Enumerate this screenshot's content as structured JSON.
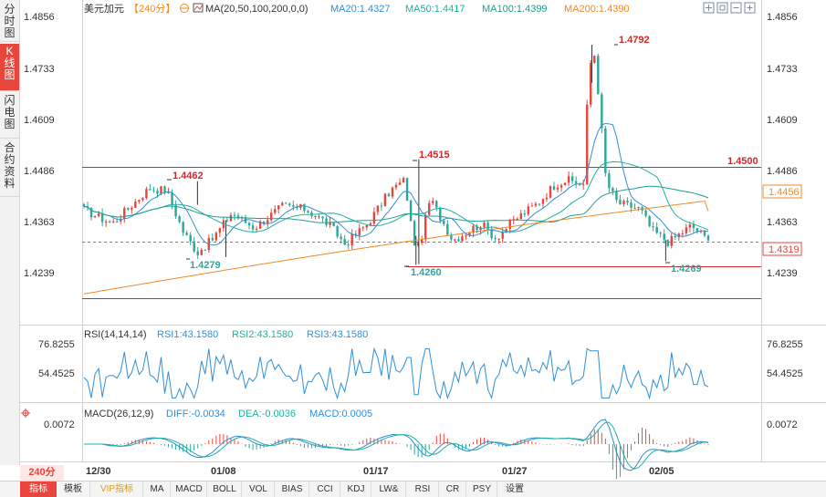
{
  "side_tabs": [
    {
      "label": "分时图",
      "active": false
    },
    {
      "label": "K线图",
      "active": true
    },
    {
      "label": "闪电图",
      "active": false
    },
    {
      "label": "合约资料",
      "active": false
    }
  ],
  "header": {
    "symbol": "美元加元",
    "period": "【240分】",
    "ma_label": "MA(20,50,100,200,0,0)",
    "ma20": "MA20:1.4327",
    "ma50": "MA50:1.4417",
    "ma100": "MA100:1.4399",
    "ma200": "MA200:1.4390"
  },
  "period_badge": "240分",
  "bottom_tabs": [
    "指标",
    "模板",
    "VIP指标",
    "MA",
    "MACD",
    "BOLL",
    "VOL",
    "BIAS",
    "CCI",
    "KDJ",
    "LW&",
    "RSI",
    "CR",
    "PSY",
    "设置"
  ],
  "rsi_header": {
    "label": "RSI(14,14,14)",
    "rsi1": "RSI1:43.1580",
    "rsi2": "RSI2:43.1580",
    "rsi3": "RSI3:43.1580"
  },
  "macd_header": {
    "label": "MACD(26,12,9)",
    "diff": "DIFF:-0.0034",
    "dea": "DEA:-0.0036",
    "macd": "MACD:0.0005"
  },
  "colors": {
    "up": "#e8463c",
    "down": "#2ca89a",
    "ma20": "#2f8fd8",
    "ma50": "#20b0a0",
    "ma100": "#20a090",
    "ma200": "#f08a24",
    "level": "#d8262a"
  },
  "chart_data": [
    {
      "type": "candlestick",
      "title": "美元加元 240分",
      "y_ticks_left": [
        "1.4856",
        "1.4733",
        "1.4609",
        "1.4486",
        "1.4363",
        "1.4239"
      ],
      "y_ticks_right": [
        "1.4856",
        "1.4733",
        "1.4609",
        "1.4486",
        "1.4363",
        "1.4239"
      ],
      "ylim": [
        1.417,
        1.486
      ],
      "x_tick_labels": [
        "12/30",
        "01/08",
        "01/17",
        "01/27",
        "02/05"
      ],
      "horizontal_levels": [
        {
          "value": 1.45,
          "label": "1.4500"
        },
        {
          "value": 1.426,
          "label": ""
        },
        {
          "value": 1.4183,
          "label": ""
        }
      ],
      "price_tags_right": [
        {
          "value": 1.45,
          "label": "1.4500"
        },
        {
          "value": 1.4456,
          "label": "1.4456"
        },
        {
          "value": 1.4319,
          "label": "1.4319"
        }
      ],
      "current_price": 1.4319,
      "annotations": [
        {
          "value": 1.4462,
          "label": "1.4462",
          "kind": "high"
        },
        {
          "value": 1.4279,
          "label": "1.4279",
          "kind": "low"
        },
        {
          "value": 1.4515,
          "label": "1.4515",
          "kind": "high"
        },
        {
          "value": 1.426,
          "label": "1.4260",
          "kind": "low"
        },
        {
          "value": 1.4792,
          "label": "1.4792",
          "kind": "high"
        },
        {
          "value": 1.4269,
          "label": "1.4269",
          "kind": "low"
        }
      ],
      "series": [
        {
          "name": "MA20",
          "last": 1.4327
        },
        {
          "name": "MA50",
          "last": 1.4417
        },
        {
          "name": "MA100",
          "last": 1.4399
        },
        {
          "name": "MA200",
          "last": 1.439
        }
      ]
    },
    {
      "type": "line",
      "title": "RSI(14,14,14)",
      "y_ticks": [
        "76.8255",
        "54.4525"
      ],
      "ylim": [
        30,
        85
      ],
      "series": [
        {
          "name": "RSI1",
          "last": 43.158
        }
      ]
    },
    {
      "type": "bar",
      "title": "MACD(26,12,9)",
      "y_ticks": [
        "0.0072"
      ],
      "series": [
        {
          "name": "DIFF",
          "last": -0.0034
        },
        {
          "name": "DEA",
          "last": -0.0036
        },
        {
          "name": "MACD",
          "last": 0.0005
        }
      ]
    }
  ]
}
